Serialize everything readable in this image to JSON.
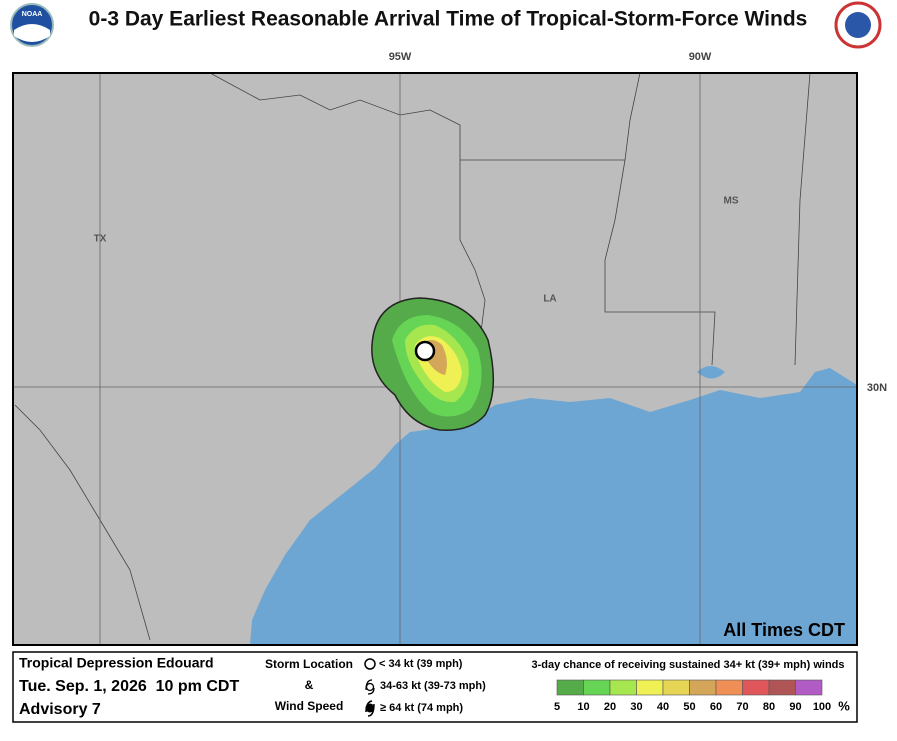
{
  "header": {
    "title": "0-3 Day Earliest Reasonable Arrival Time of Tropical-Storm-Force Winds",
    "logo": "NOAA"
  },
  "map": {
    "lon_labels": [
      "95W",
      "90W"
    ],
    "lat_labels": [
      "30N"
    ],
    "state_labels": [
      "TX",
      "LA",
      "MS"
    ],
    "note": "All Times CDT"
  },
  "legend": {
    "storm": {
      "name": "Tropical Depression Edouard",
      "time": "Tue. Sep. 1, 2026  10 pm CDT",
      "advisory": "Advisory 7"
    },
    "storm_location": {
      "title": [
        "Storm Location",
        "&",
        "Wind Speed"
      ],
      "items": [
        "< 34 kt (39 mph)",
        "34-63 kt (39-73 mph)",
        "≥ 64 kt (74 mph)"
      ]
    },
    "probability": {
      "title": "3-day chance of receiving sustained 34+ kt (39+ mph) winds",
      "scale": [
        5,
        10,
        20,
        30,
        40,
        50,
        60,
        70,
        80,
        90,
        100
      ],
      "unit": "%",
      "colors": [
        "#55ab4a",
        "#66d455",
        "#a6e64f",
        "#eef053",
        "#e6d455",
        "#d3a65a",
        "#f08f55",
        "#e0565a",
        "#b05555",
        "#b15cc4"
      ]
    }
  }
}
